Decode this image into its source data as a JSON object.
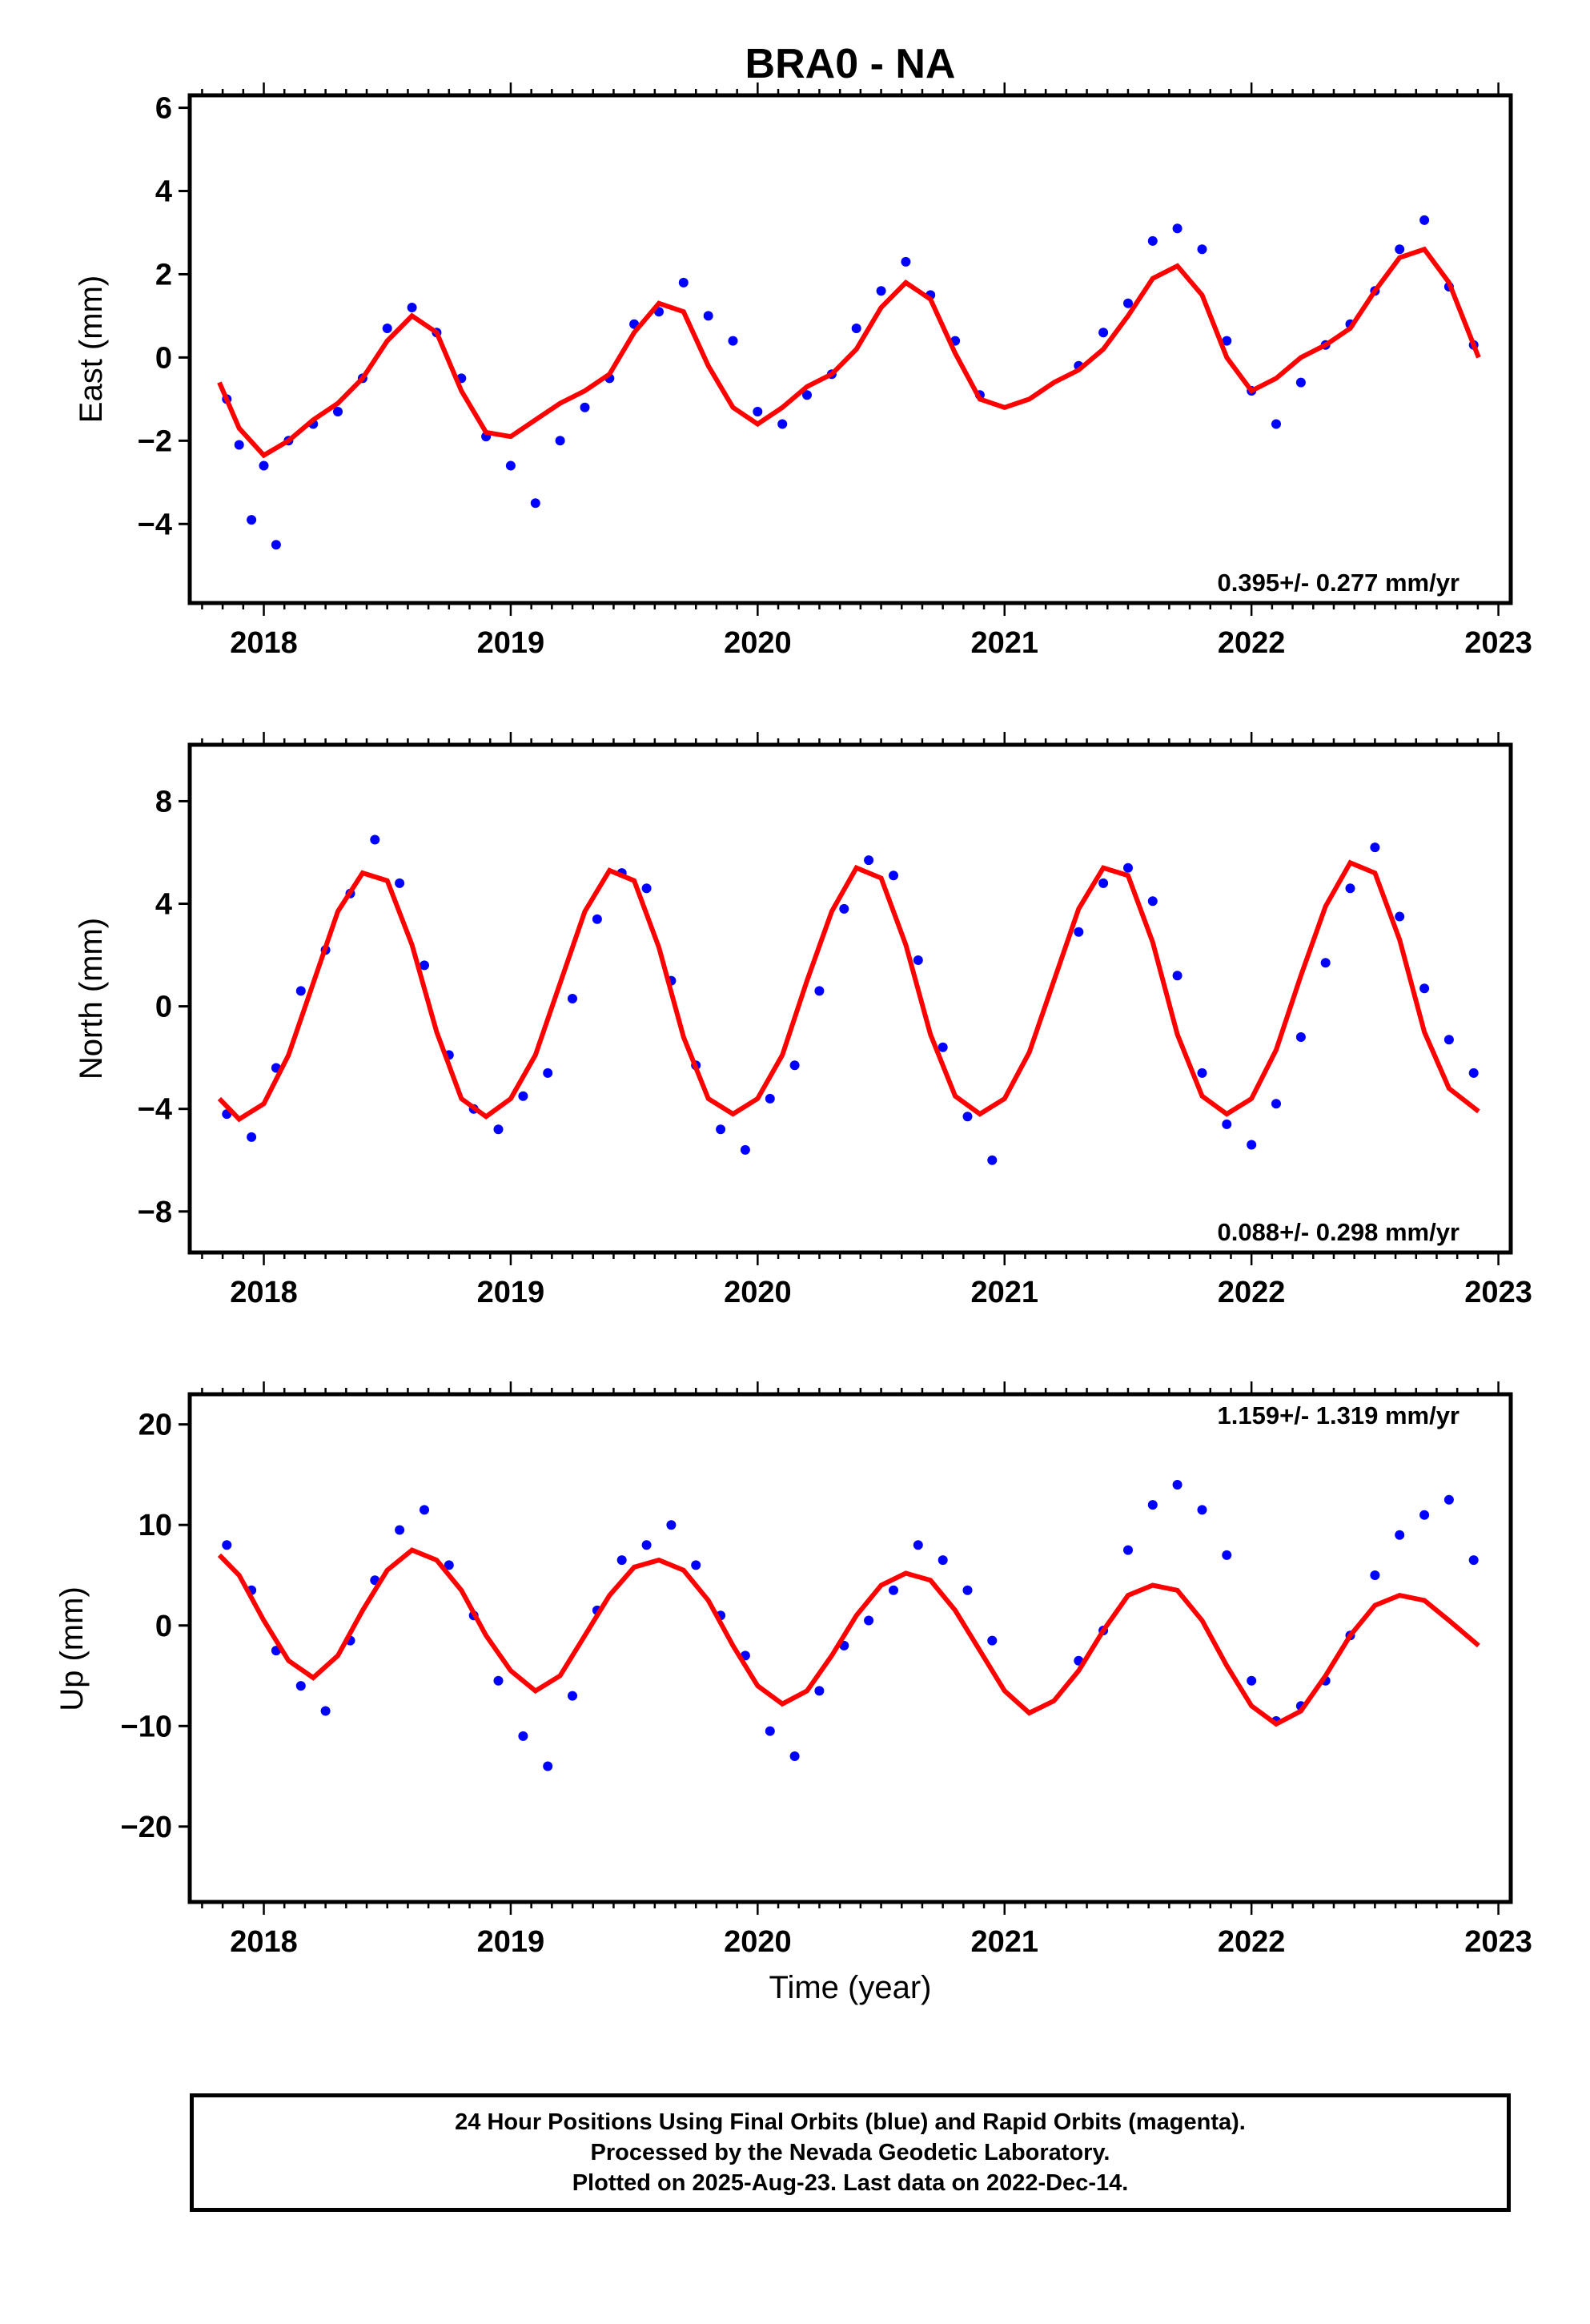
{
  "title": "BRA0 - NA",
  "xlabel": "Time (year)",
  "footer": {
    "line1": "24 Hour Positions Using Final Orbits (blue) and Rapid Orbits (magenta).",
    "line2": "Processed by the Nevada Geodetic Laboratory.",
    "line3": "Plotted on 2025-Aug-23. Last data on 2022-Dec-14."
  },
  "colors": {
    "points": "#0000ff",
    "fit": "#ff0000",
    "frame": "#000000"
  },
  "chart_data": [
    {
      "type": "scatter",
      "title": "BRA0 - NA",
      "ylabel": "East (mm)",
      "xlabel": "",
      "xlim": [
        2017.7,
        2023.05
      ],
      "ylim": [
        -5.9,
        6.3
      ],
      "xticks": [
        "2018",
        "2019",
        "2020",
        "2021",
        "2022",
        "2023"
      ],
      "yticks": [
        "-4",
        "-2",
        "0",
        "2",
        "4",
        "6"
      ],
      "rate_label": "0.395+/- 0.277 mm/yr",
      "series": [
        {
          "role": "observations",
          "color": "#0000ff",
          "x": [
            2017.85,
            2017.9,
            2017.95,
            2018.0,
            2018.05,
            2018.1,
            2018.2,
            2018.3,
            2018.4,
            2018.5,
            2018.6,
            2018.7,
            2018.8,
            2018.9,
            2019.0,
            2019.1,
            2019.2,
            2019.3,
            2019.4,
            2019.5,
            2019.6,
            2019.7,
            2019.8,
            2019.9,
            2020.0,
            2020.1,
            2020.2,
            2020.3,
            2020.4,
            2020.5,
            2020.6,
            2020.7,
            2020.8,
            2020.9,
            2021.3,
            2021.4,
            2021.5,
            2021.6,
            2021.7,
            2021.8,
            2021.9,
            2022.0,
            2022.1,
            2022.2,
            2022.3,
            2022.4,
            2022.5,
            2022.6,
            2022.7,
            2022.8,
            2022.9
          ],
          "y": [
            -1.0,
            -2.1,
            -3.9,
            -2.6,
            -4.5,
            -2.0,
            -1.6,
            -1.3,
            -0.5,
            0.7,
            1.2,
            0.6,
            -0.5,
            -1.9,
            -2.6,
            -3.5,
            -2.0,
            -1.2,
            -0.5,
            0.8,
            1.1,
            1.8,
            1.0,
            0.4,
            -1.3,
            -1.6,
            -0.9,
            -0.4,
            0.7,
            1.6,
            2.3,
            1.5,
            0.4,
            -0.9,
            -0.2,
            0.6,
            1.3,
            2.8,
            3.1,
            2.6,
            0.4,
            -0.8,
            -1.6,
            -0.6,
            0.3,
            0.8,
            1.6,
            2.6,
            3.3,
            1.7,
            0.3
          ]
        },
        {
          "role": "fit",
          "color": "#ff0000",
          "x": [
            2017.82,
            2017.9,
            2018.0,
            2018.1,
            2018.2,
            2018.3,
            2018.4,
            2018.5,
            2018.6,
            2018.7,
            2018.8,
            2018.9,
            2019.0,
            2019.1,
            2019.2,
            2019.3,
            2019.4,
            2019.5,
            2019.6,
            2019.7,
            2019.8,
            2019.9,
            2020.0,
            2020.1,
            2020.2,
            2020.3,
            2020.4,
            2020.5,
            2020.6,
            2020.7,
            2020.8,
            2020.9,
            2021.0,
            2021.1,
            2021.2,
            2021.3,
            2021.4,
            2021.5,
            2021.6,
            2021.7,
            2021.8,
            2021.9,
            2022.0,
            2022.1,
            2022.2,
            2022.3,
            2022.4,
            2022.5,
            2022.6,
            2022.7,
            2022.8,
            2022.92
          ],
          "y": [
            -0.6,
            -1.7,
            -2.35,
            -2.0,
            -1.5,
            -1.1,
            -0.5,
            0.4,
            1.0,
            0.6,
            -0.8,
            -1.8,
            -1.9,
            -1.5,
            -1.1,
            -0.8,
            -0.4,
            0.6,
            1.3,
            1.1,
            -0.2,
            -1.2,
            -1.6,
            -1.2,
            -0.7,
            -0.4,
            0.2,
            1.2,
            1.8,
            1.4,
            0.1,
            -1.0,
            -1.2,
            -1.0,
            -0.6,
            -0.3,
            0.2,
            1.0,
            1.9,
            2.2,
            1.5,
            0.0,
            -0.8,
            -0.5,
            0.0,
            0.3,
            0.7,
            1.6,
            2.4,
            2.6,
            1.8,
            0.0
          ]
        }
      ]
    },
    {
      "type": "scatter",
      "ylabel": "North (mm)",
      "xlabel": "",
      "xlim": [
        2017.7,
        2023.05
      ],
      "ylim": [
        -9.6,
        10.2
      ],
      "xticks": [
        "2018",
        "2019",
        "2020",
        "2021",
        "2022",
        "2023"
      ],
      "yticks": [
        "-8",
        "-4",
        "0",
        "4",
        "8"
      ],
      "rate_label": "0.088+/- 0.298 mm/yr",
      "series": [
        {
          "role": "observations",
          "color": "#0000ff",
          "x": [
            2017.85,
            2017.95,
            2018.05,
            2018.15,
            2018.25,
            2018.35,
            2018.45,
            2018.55,
            2018.65,
            2018.75,
            2018.85,
            2018.95,
            2019.05,
            2019.15,
            2019.25,
            2019.35,
            2019.45,
            2019.55,
            2019.65,
            2019.75,
            2019.85,
            2019.95,
            2020.05,
            2020.15,
            2020.25,
            2020.35,
            2020.45,
            2020.55,
            2020.65,
            2020.75,
            2020.85,
            2020.95,
            2021.3,
            2021.4,
            2021.5,
            2021.6,
            2021.7,
            2021.8,
            2021.9,
            2022.0,
            2022.1,
            2022.2,
            2022.3,
            2022.4,
            2022.5,
            2022.6,
            2022.7,
            2022.8,
            2022.9
          ],
          "y": [
            -4.2,
            -5.1,
            -2.4,
            0.6,
            2.2,
            4.4,
            6.5,
            4.8,
            1.6,
            -1.9,
            -4.0,
            -4.8,
            -3.5,
            -2.6,
            0.3,
            3.4,
            5.2,
            4.6,
            1.0,
            -2.3,
            -4.8,
            -5.6,
            -3.6,
            -2.3,
            0.6,
            3.8,
            5.7,
            5.1,
            1.8,
            -1.6,
            -4.3,
            -6.0,
            2.9,
            4.8,
            5.4,
            4.1,
            1.2,
            -2.6,
            -4.6,
            -5.4,
            -3.8,
            -1.2,
            1.7,
            4.6,
            6.2,
            3.5,
            0.7,
            -1.3,
            -2.6
          ]
        },
        {
          "role": "fit",
          "color": "#ff0000",
          "x": [
            2017.82,
            2017.9,
            2018.0,
            2018.1,
            2018.2,
            2018.3,
            2018.4,
            2018.5,
            2018.6,
            2018.7,
            2018.8,
            2018.9,
            2019.0,
            2019.1,
            2019.2,
            2019.3,
            2019.4,
            2019.5,
            2019.6,
            2019.7,
            2019.8,
            2019.9,
            2020.0,
            2020.1,
            2020.2,
            2020.3,
            2020.4,
            2020.5,
            2020.6,
            2020.7,
            2020.8,
            2020.9,
            2021.0,
            2021.1,
            2021.2,
            2021.3,
            2021.4,
            2021.5,
            2021.6,
            2021.7,
            2021.8,
            2021.9,
            2022.0,
            2022.1,
            2022.2,
            2022.3,
            2022.4,
            2022.5,
            2022.6,
            2022.7,
            2022.8,
            2022.92
          ],
          "y": [
            -3.6,
            -4.4,
            -3.8,
            -1.9,
            0.9,
            3.7,
            5.2,
            4.9,
            2.4,
            -1.0,
            -3.6,
            -4.3,
            -3.6,
            -1.9,
            0.9,
            3.7,
            5.3,
            4.9,
            2.3,
            -1.2,
            -3.6,
            -4.2,
            -3.6,
            -1.9,
            1.0,
            3.7,
            5.4,
            5.0,
            2.4,
            -1.1,
            -3.5,
            -4.2,
            -3.6,
            -1.8,
            1.0,
            3.8,
            5.4,
            5.1,
            2.5,
            -1.1,
            -3.5,
            -4.2,
            -3.6,
            -1.7,
            1.2,
            3.9,
            5.6,
            5.2,
            2.6,
            -1.0,
            -3.2,
            -4.1
          ]
        }
      ]
    },
    {
      "type": "scatter",
      "ylabel": "Up (mm)",
      "xlabel": "Time (year)",
      "xlim": [
        2017.7,
        2023.05
      ],
      "ylim": [
        -27.5,
        23.0
      ],
      "xticks": [
        "2018",
        "2019",
        "2020",
        "2021",
        "2022",
        "2023"
      ],
      "yticks": [
        "-20",
        "-10",
        "0",
        "10",
        "20"
      ],
      "rate_label": "1.159+/- 1.319 mm/yr",
      "series": [
        {
          "role": "observations",
          "color": "#0000ff",
          "x": [
            2017.85,
            2017.95,
            2018.05,
            2018.15,
            2018.25,
            2018.35,
            2018.45,
            2018.55,
            2018.65,
            2018.75,
            2018.85,
            2018.95,
            2019.05,
            2019.15,
            2019.25,
            2019.35,
            2019.45,
            2019.55,
            2019.65,
            2019.75,
            2019.85,
            2019.95,
            2020.05,
            2020.15,
            2020.25,
            2020.35,
            2020.45,
            2020.55,
            2020.65,
            2020.75,
            2020.85,
            2020.95,
            2021.3,
            2021.4,
            2021.5,
            2021.6,
            2021.7,
            2021.8,
            2021.9,
            2022.0,
            2022.1,
            2022.2,
            2022.3,
            2022.4,
            2022.5,
            2022.6,
            2022.7,
            2022.8,
            2022.9
          ],
          "y": [
            8.0,
            3.5,
            -2.5,
            -6.0,
            -8.5,
            -1.5,
            4.5,
            9.5,
            11.5,
            6.0,
            1.0,
            -5.5,
            -11.0,
            -14.0,
            -7.0,
            1.5,
            6.5,
            8.0,
            10.0,
            6.0,
            1.0,
            -3.0,
            -10.5,
            -13.0,
            -6.5,
            -2.0,
            0.5,
            3.5,
            8.0,
            6.5,
            3.5,
            -1.5,
            -3.5,
            -0.5,
            7.5,
            12.0,
            14.0,
            11.5,
            7.0,
            -5.5,
            -9.5,
            -8.0,
            -5.5,
            -1.0,
            5.0,
            9.0,
            11.0,
            12.5,
            6.5
          ]
        },
        {
          "role": "fit",
          "color": "#ff0000",
          "x": [
            2017.82,
            2017.9,
            2018.0,
            2018.1,
            2018.2,
            2018.3,
            2018.4,
            2018.5,
            2018.6,
            2018.7,
            2018.8,
            2018.9,
            2019.0,
            2019.1,
            2019.2,
            2019.3,
            2019.4,
            2019.5,
            2019.6,
            2019.7,
            2019.8,
            2019.9,
            2020.0,
            2020.1,
            2020.2,
            2020.3,
            2020.4,
            2020.5,
            2020.6,
            2020.7,
            2020.8,
            2020.9,
            2021.0,
            2021.1,
            2021.2,
            2021.3,
            2021.4,
            2021.5,
            2021.6,
            2021.7,
            2021.8,
            2021.9,
            2022.0,
            2022.1,
            2022.2,
            2022.3,
            2022.4,
            2022.5,
            2022.6,
            2022.7,
            2022.8,
            2022.92
          ],
          "y": [
            7.0,
            5.0,
            0.5,
            -3.5,
            -5.2,
            -3.0,
            1.5,
            5.5,
            7.5,
            6.5,
            3.5,
            -1.0,
            -4.5,
            -6.5,
            -5.0,
            -1.0,
            3.0,
            5.8,
            6.5,
            5.5,
            2.5,
            -2.0,
            -6.0,
            -7.8,
            -6.5,
            -3.0,
            1.0,
            4.0,
            5.2,
            4.5,
            1.5,
            -2.5,
            -6.5,
            -8.7,
            -7.5,
            -4.5,
            -0.5,
            3.0,
            4.0,
            3.5,
            0.5,
            -4.0,
            -8.0,
            -9.8,
            -8.5,
            -5.0,
            -1.0,
            2.0,
            3.0,
            2.5,
            0.5,
            -2.0
          ]
        }
      ]
    }
  ]
}
